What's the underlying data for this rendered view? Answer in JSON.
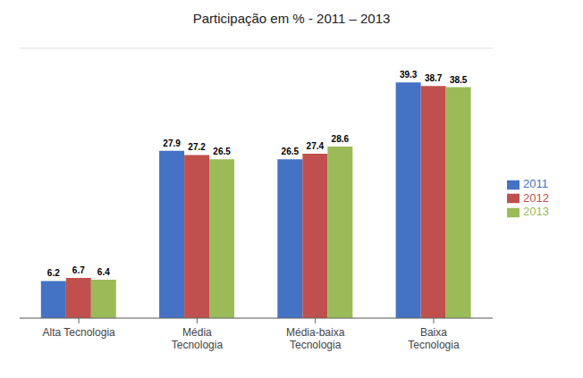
{
  "chart_data": {
    "type": "bar",
    "title": "Participação em % - 2011 – 2013",
    "categories": [
      "Alta Tecnologia",
      "Média\nTecnologia",
      "Média-baixa\nTecnologia",
      "Baixa\nTecnologia"
    ],
    "series": [
      {
        "name": "2011",
        "color": "#4472C4",
        "values": [
          6.2,
          27.9,
          26.5,
          39.3
        ]
      },
      {
        "name": "2012",
        "color": "#C0504D",
        "values": [
          6.7,
          27.2,
          27.4,
          38.7
        ]
      },
      {
        "name": "2013",
        "color": "#9BBB59",
        "values": [
          6.4,
          26.5,
          28.6,
          38.5
        ]
      }
    ],
    "ylim": [
      0,
      45
    ],
    "yticks": [
      5,
      10,
      15,
      20,
      25,
      30,
      35,
      40,
      45
    ],
    "grid": true,
    "legend": "right",
    "data_labels": true,
    "tick_labels": "x"
  }
}
